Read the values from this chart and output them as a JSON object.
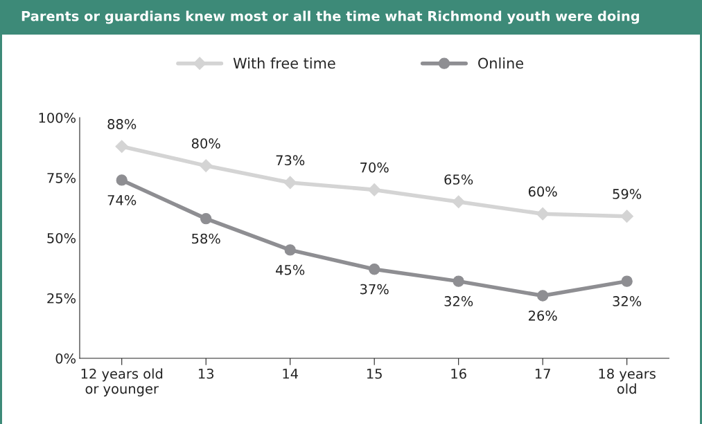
{
  "chart_data": {
    "type": "line",
    "title": "Parents or guardians knew most or all the time what Richmond youth were doing",
    "categories": [
      "12 years old\nor younger",
      "13",
      "14",
      "15",
      "16",
      "17",
      "18 years\nold"
    ],
    "series": [
      {
        "name": "With free time",
        "color": "#d4d4d4",
        "marker": "diamond",
        "values": [
          88,
          80,
          73,
          70,
          65,
          60,
          59
        ],
        "value_labels": [
          "88%",
          "80%",
          "73%",
          "70%",
          "65%",
          "60%",
          "59%"
        ]
      },
      {
        "name": "Online",
        "color": "#8e8e92",
        "marker": "circle",
        "values": [
          74,
          58,
          45,
          37,
          32,
          26,
          32
        ],
        "value_labels": [
          "74%",
          "58%",
          "45%",
          "37%",
          "32%",
          "26%",
          "32%"
        ]
      }
    ],
    "ylim": [
      0,
      100
    ],
    "yticks": [
      {
        "value": 0,
        "label": "0%"
      },
      {
        "value": 25,
        "label": "25%"
      },
      {
        "value": 50,
        "label": "50%"
      },
      {
        "value": 75,
        "label": "75%"
      },
      {
        "value": 100,
        "label": "100%"
      }
    ],
    "grid": false,
    "legend": "top",
    "line_style": "solid"
  }
}
